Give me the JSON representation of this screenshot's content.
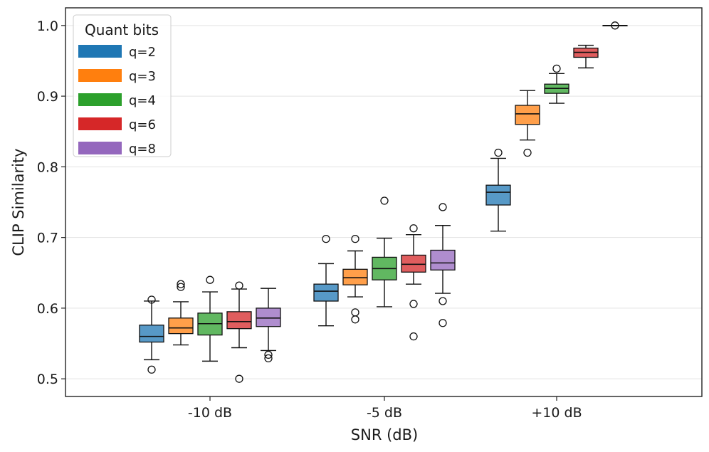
{
  "chart_data": {
    "type": "box",
    "title": "",
    "xlabel": "SNR (dB)",
    "ylabel": "CLIP Similarity",
    "ylim": [
      0.475,
      1.025
    ],
    "yticks": [
      0.5,
      0.6,
      0.7,
      0.8,
      0.9,
      1.0
    ],
    "ytick_labels": [
      "0.5",
      "0.6",
      "0.7",
      "0.8",
      "0.9",
      "1.0"
    ],
    "grid": "horizontal",
    "categories": [
      "-10 dB",
      "-5 dB",
      "+10 dB"
    ],
    "legend": {
      "title": "Quant bits",
      "position": "top-left"
    },
    "series": [
      {
        "name": "q=2",
        "color": "#1f77b4",
        "boxes": [
          {
            "whislo": 0.527,
            "q1": 0.552,
            "med": 0.56,
            "q3": 0.576,
            "whishi": 0.61,
            "fliers": [
              0.612,
              0.513
            ]
          },
          {
            "whislo": 0.575,
            "q1": 0.61,
            "med": 0.624,
            "q3": 0.634,
            "whishi": 0.663,
            "fliers": [
              0.698
            ]
          },
          {
            "whislo": 0.709,
            "q1": 0.746,
            "med": 0.764,
            "q3": 0.774,
            "whishi": 0.812,
            "fliers": [
              0.82
            ]
          }
        ]
      },
      {
        "name": "q=3",
        "color": "#ff7f0e",
        "boxes": [
          {
            "whislo": 0.548,
            "q1": 0.564,
            "med": 0.572,
            "q3": 0.586,
            "whishi": 0.609,
            "fliers": [
              0.634,
              0.63
            ]
          },
          {
            "whislo": 0.616,
            "q1": 0.633,
            "med": 0.643,
            "q3": 0.655,
            "whishi": 0.681,
            "fliers": [
              0.698,
              0.594,
              0.584
            ]
          },
          {
            "whislo": 0.838,
            "q1": 0.86,
            "med": 0.875,
            "q3": 0.887,
            "whishi": 0.908,
            "fliers": [
              0.82
            ]
          }
        ]
      },
      {
        "name": "q=4",
        "color": "#2ca02c",
        "boxes": [
          {
            "whislo": 0.525,
            "q1": 0.562,
            "med": 0.578,
            "q3": 0.593,
            "whishi": 0.623,
            "fliers": [
              0.64
            ]
          },
          {
            "whislo": 0.602,
            "q1": 0.64,
            "med": 0.656,
            "q3": 0.672,
            "whishi": 0.699,
            "fliers": [
              0.752
            ]
          },
          {
            "whislo": 0.89,
            "q1": 0.904,
            "med": 0.911,
            "q3": 0.917,
            "whishi": 0.932,
            "fliers": [
              0.939
            ]
          }
        ]
      },
      {
        "name": "q=6",
        "color": "#d62728",
        "boxes": [
          {
            "whislo": 0.544,
            "q1": 0.571,
            "med": 0.581,
            "q3": 0.595,
            "whishi": 0.627,
            "fliers": [
              0.632,
              0.5
            ]
          },
          {
            "whislo": 0.634,
            "q1": 0.651,
            "med": 0.662,
            "q3": 0.675,
            "whishi": 0.704,
            "fliers": [
              0.713,
              0.606,
              0.56
            ]
          },
          {
            "whislo": 0.94,
            "q1": 0.955,
            "med": 0.962,
            "q3": 0.968,
            "whishi": 0.972,
            "fliers": []
          }
        ]
      },
      {
        "name": "q=8",
        "color": "#9467bd",
        "boxes": [
          {
            "whislo": 0.54,
            "q1": 0.574,
            "med": 0.586,
            "q3": 0.6,
            "whishi": 0.628,
            "fliers": [
              0.534,
              0.529
            ]
          },
          {
            "whislo": 0.621,
            "q1": 0.654,
            "med": 0.664,
            "q3": 0.682,
            "whishi": 0.717,
            "fliers": [
              0.743,
              0.61,
              0.579
            ]
          },
          {
            "whislo": 1.0,
            "q1": 1.0,
            "med": 1.0,
            "q3": 1.0,
            "whishi": 1.0,
            "fliers": [
              1.0
            ]
          }
        ]
      }
    ]
  }
}
